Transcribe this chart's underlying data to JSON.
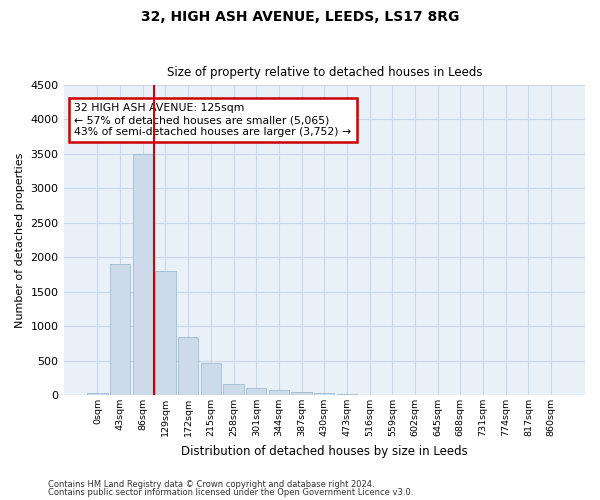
{
  "title1": "32, HIGH ASH AVENUE, LEEDS, LS17 8RG",
  "title2": "Size of property relative to detached houses in Leeds",
  "xlabel": "Distribution of detached houses by size in Leeds",
  "ylabel": "Number of detached properties",
  "bar_labels": [
    "0sqm",
    "43sqm",
    "86sqm",
    "129sqm",
    "172sqm",
    "215sqm",
    "258sqm",
    "301sqm",
    "344sqm",
    "387sqm",
    "430sqm",
    "473sqm",
    "516sqm",
    "559sqm",
    "602sqm",
    "645sqm",
    "688sqm",
    "731sqm",
    "774sqm",
    "817sqm",
    "860sqm"
  ],
  "bar_values": [
    30,
    1900,
    3500,
    1800,
    840,
    460,
    160,
    100,
    70,
    50,
    30,
    15,
    5,
    2,
    1,
    0,
    0,
    0,
    0,
    0,
    0
  ],
  "bar_color": "#ccdaea",
  "bar_edge_color": "#a0bdd0",
  "annotation_text": "32 HIGH ASH AVENUE: 125sqm\n← 57% of detached houses are smaller (5,065)\n43% of semi-detached houses are larger (3,752) →",
  "annotation_box_color": "#ffffff",
  "annotation_border_color": "#cc0000",
  "property_line_color": "#cc0000",
  "grid_color": "#c8d8e8",
  "background_color": "#e8f0f8",
  "ylim": [
    0,
    4500
  ],
  "yticks": [
    0,
    500,
    1000,
    1500,
    2000,
    2500,
    3000,
    3500,
    4000,
    4500
  ],
  "footer1": "Contains HM Land Registry data © Crown copyright and database right 2024.",
  "footer2": "Contains public sector information licensed under the Open Government Licence v3.0."
}
